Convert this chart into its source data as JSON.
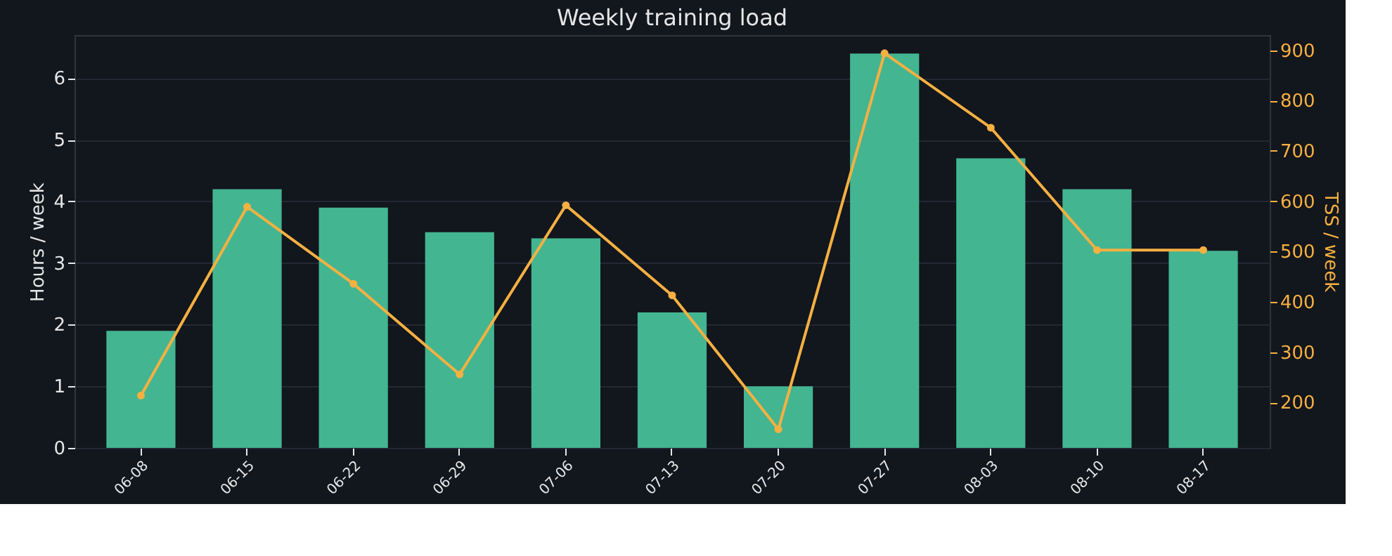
{
  "chart_data": {
    "type": "bar",
    "title": "Weekly training load",
    "ylabel": "Hours / week",
    "y2label": "TSS / week",
    "categories": [
      "06-08",
      "06-15",
      "06-22",
      "06-29",
      "07-06",
      "07-13",
      "07-20",
      "07-27",
      "08-03",
      "08-10",
      "08-17"
    ],
    "series": [
      {
        "color": "#43b591",
        "values": [
          1.9,
          4.2,
          3.9,
          3.5,
          3.4,
          2.2,
          1.0,
          6.4,
          4.7,
          4.2,
          3.2
        ]
      },
      {
        "type": "line",
        "axis": "y2",
        "color": "#f5b041",
        "marker": "circle",
        "line_style": "solid",
        "values": [
          214,
          589,
          436,
          256,
          592,
          413,
          147,
          894,
          746,
          503,
          503
        ]
      }
    ],
    "ylim": [
      0,
      6.7
    ],
    "yticks": [
      0,
      1,
      2,
      3,
      4,
      5,
      6
    ],
    "y2lim": [
      110,
      930
    ],
    "y2ticks": [
      200,
      300,
      400,
      500,
      600,
      700,
      800,
      900
    ],
    "grid": "y"
  }
}
